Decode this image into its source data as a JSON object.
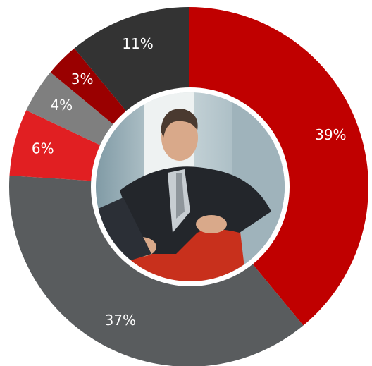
{
  "chart_data": {
    "type": "donut",
    "values": [
      39,
      37,
      6,
      4,
      3,
      11
    ],
    "value_labels": [
      "39%",
      "37%",
      "6%",
      "4%",
      "3%",
      "11%"
    ],
    "colors": [
      "#c00000",
      "#595c5e",
      "#e11f22",
      "#7f7f7f",
      "#9a0000",
      "#333333"
    ]
  }
}
